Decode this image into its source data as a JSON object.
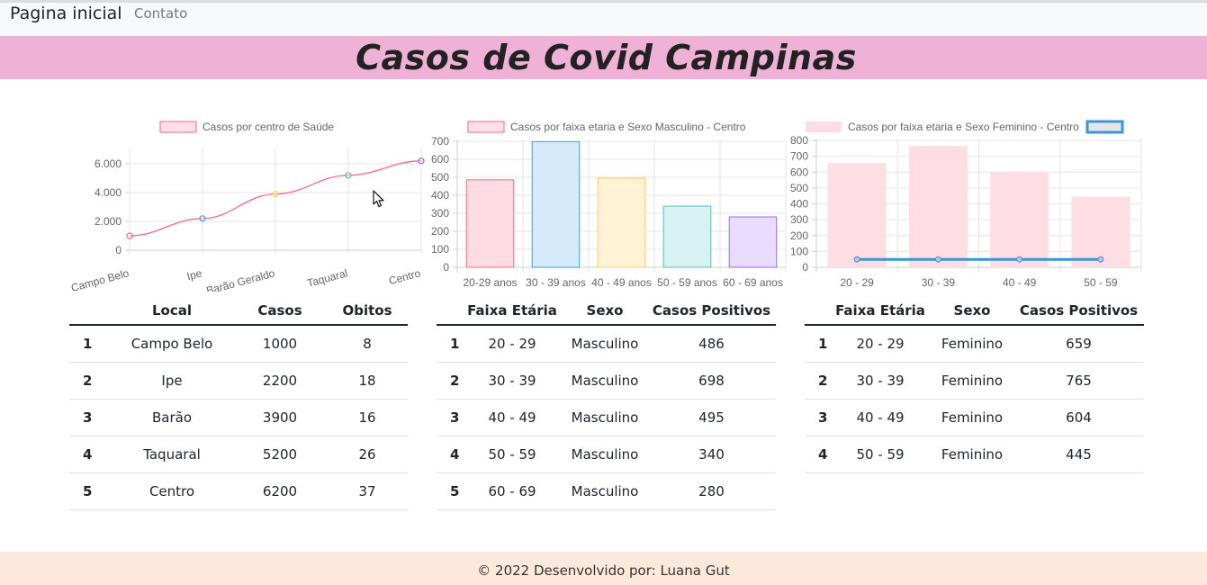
{
  "nav": {
    "brand": "Pagina inicial",
    "link_contact": "Contato"
  },
  "banner": {
    "title": "Casos de Covid Campinas"
  },
  "chart_data": [
    {
      "type": "line",
      "categories": [
        "Campo Belo",
        "Ipe",
        "Barão Geraldo",
        "Taquaral",
        "Centro"
      ],
      "series": [
        {
          "name": "Casos por centro de Saúde",
          "values": [
            1000,
            2200,
            3900,
            5200,
            6200
          ]
        }
      ],
      "ylim": [
        0,
        7000
      ],
      "yticks": [
        "0",
        "2.000",
        "4.000",
        "6.000"
      ],
      "point_colors": [
        "#ff6384",
        "#36a2eb",
        "#ffce56",
        "#4bc0c0",
        "#9966ff"
      ],
      "line_color": "#ff6384",
      "legend": "top",
      "grid": true
    },
    {
      "type": "bar",
      "categories": [
        "20-29 anos",
        "30 - 39 anos",
        "40 - 49 anos",
        "50 - 59 anos",
        "60 - 69 anos"
      ],
      "series": [
        {
          "name": "Casos por faixa etaria e Sexo Masculino - Centro",
          "values": [
            486,
            698,
            495,
            340,
            280
          ]
        }
      ],
      "ylim": [
        0,
        700
      ],
      "yticks": [
        "0",
        "100",
        "200",
        "300",
        "400",
        "500",
        "600",
        "700"
      ],
      "bar_fill": [
        "#ffdce4",
        "#d5ebfb",
        "#fff2d6",
        "#d8f2f2",
        "#e8ddfe"
      ],
      "bar_stroke": [
        "#ff6384",
        "#36a2eb",
        "#ffce56",
        "#4bc0c0",
        "#9966ff"
      ],
      "legend": "top",
      "grid": true
    },
    {
      "type": "bar",
      "categories": [
        "20 - 29",
        "30 - 39",
        "40 - 49",
        "50 - 59"
      ],
      "series": [
        {
          "name": "Casos por faixa etaria e Sexo Feminino - Centro",
          "values": [
            659,
            765,
            604,
            445
          ]
        },
        {
          "name": "",
          "type": "line",
          "values": [
            50,
            50,
            50,
            50
          ]
        }
      ],
      "ylim": [
        0,
        800
      ],
      "yticks": [
        "0",
        "100",
        "200",
        "300",
        "400",
        "500",
        "600",
        "700",
        "800"
      ],
      "bar_fill": "#ffdde4",
      "line_color": "#3b95d8",
      "legend": "top",
      "grid": true
    }
  ],
  "table_local": {
    "headers": [
      "",
      "Local",
      "Casos",
      "Obitos"
    ],
    "rows": [
      [
        "1",
        "Campo Belo",
        "1000",
        "8"
      ],
      [
        "2",
        "Ipe",
        "2200",
        "18"
      ],
      [
        "3",
        "Barão",
        "3900",
        "16"
      ],
      [
        "4",
        "Taquaral",
        "5200",
        "26"
      ],
      [
        "5",
        "Centro",
        "6200",
        "37"
      ]
    ]
  },
  "table_masc": {
    "headers": [
      "",
      "Faixa Etária",
      "Sexo",
      "Casos Positivos"
    ],
    "rows": [
      [
        "1",
        "20 - 29",
        "Masculino",
        "486"
      ],
      [
        "2",
        "30 - 39",
        "Masculino",
        "698"
      ],
      [
        "3",
        "40 - 49",
        "Masculino",
        "495"
      ],
      [
        "4",
        "50 - 59",
        "Masculino",
        "340"
      ],
      [
        "5",
        "60 - 69",
        "Masculino",
        "280"
      ]
    ]
  },
  "table_fem": {
    "headers": [
      "",
      "Faixa Etária",
      "Sexo",
      "Casos Positivos"
    ],
    "rows": [
      [
        "1",
        "20 - 29",
        "Feminino",
        "659"
      ],
      [
        "2",
        "30 - 39",
        "Feminino",
        "765"
      ],
      [
        "3",
        "40 - 49",
        "Feminino",
        "604"
      ],
      [
        "4",
        "50 - 59",
        "Feminino",
        "445"
      ]
    ]
  },
  "footer": {
    "text": "© 2022 Desenvolvido por: Luana Gut"
  },
  "icons": {
    "cursor": "mouse-pointer-icon"
  }
}
